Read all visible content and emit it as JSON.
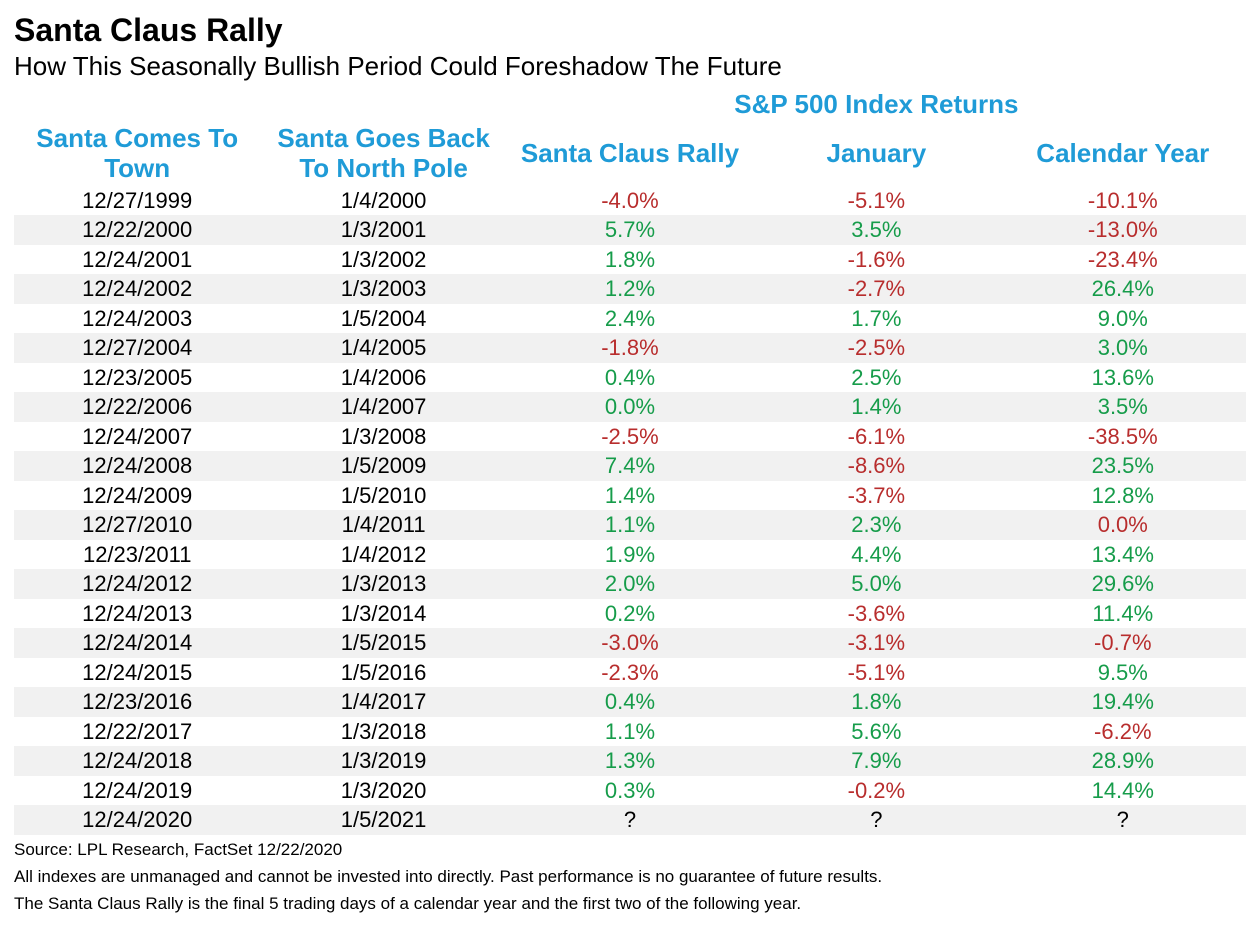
{
  "title": "Santa Claus Rally",
  "subtitle": "How This Seasonally Bullish Period Could Foreshadow The Future",
  "colors": {
    "header_blue": "#1f9bd7",
    "positive": "#169c4a",
    "negative": "#b82d2d",
    "neutral": "#000000",
    "row_alt_bg": "#f1f1f1",
    "text": "#000000",
    "background": "#ffffff"
  },
  "table": {
    "type": "table",
    "super_header": "S&P 500 Index Returns",
    "columns": [
      "Santa Comes To Town",
      "Santa Goes Back To North Pole",
      "Santa Claus Rally",
      "January",
      "Calendar Year"
    ],
    "column_align": [
      "center",
      "center",
      "center",
      "center",
      "center"
    ],
    "font_size_header": 26,
    "font_size_cell": 22,
    "rows": [
      {
        "start": "12/27/1999",
        "end": "1/4/2000",
        "rally": -4.0,
        "jan": -5.1,
        "year": -10.1
      },
      {
        "start": "12/22/2000",
        "end": "1/3/2001",
        "rally": 5.7,
        "jan": 3.5,
        "year": -13.0
      },
      {
        "start": "12/24/2001",
        "end": "1/3/2002",
        "rally": 1.8,
        "jan": -1.6,
        "year": -23.4
      },
      {
        "start": "12/24/2002",
        "end": "1/3/2003",
        "rally": 1.2,
        "jan": -2.7,
        "year": 26.4
      },
      {
        "start": "12/24/2003",
        "end": "1/5/2004",
        "rally": 2.4,
        "jan": 1.7,
        "year": 9.0
      },
      {
        "start": "12/27/2004",
        "end": "1/4/2005",
        "rally": -1.8,
        "jan": -2.5,
        "year": 3.0
      },
      {
        "start": "12/23/2005",
        "end": "1/4/2006",
        "rally": 0.4,
        "jan": 2.5,
        "year": 13.6
      },
      {
        "start": "12/22/2006",
        "end": "1/4/2007",
        "rally": 0.0,
        "jan": 1.4,
        "year": 3.5
      },
      {
        "start": "12/24/2007",
        "end": "1/3/2008",
        "rally": -2.5,
        "jan": -6.1,
        "year": -38.5
      },
      {
        "start": "12/24/2008",
        "end": "1/5/2009",
        "rally": 7.4,
        "jan": -8.6,
        "year": 23.5
      },
      {
        "start": "12/24/2009",
        "end": "1/5/2010",
        "rally": 1.4,
        "jan": -3.7,
        "year": 12.8
      },
      {
        "start": "12/27/2010",
        "end": "1/4/2011",
        "rally": 1.1,
        "jan": 2.3,
        "year": 0.0
      },
      {
        "start": "12/23/2011",
        "end": "1/4/2012",
        "rally": 1.9,
        "jan": 4.4,
        "year": 13.4
      },
      {
        "start": "12/24/2012",
        "end": "1/3/2013",
        "rally": 2.0,
        "jan": 5.0,
        "year": 29.6
      },
      {
        "start": "12/24/2013",
        "end": "1/3/2014",
        "rally": 0.2,
        "jan": -3.6,
        "year": 11.4
      },
      {
        "start": "12/24/2014",
        "end": "1/5/2015",
        "rally": -3.0,
        "jan": -3.1,
        "year": -0.7
      },
      {
        "start": "12/24/2015",
        "end": "1/5/2016",
        "rally": -2.3,
        "jan": -5.1,
        "year": 9.5
      },
      {
        "start": "12/23/2016",
        "end": "1/4/2017",
        "rally": 0.4,
        "jan": 1.8,
        "year": 19.4
      },
      {
        "start": "12/22/2017",
        "end": "1/3/2018",
        "rally": 1.1,
        "jan": 5.6,
        "year": -6.2
      },
      {
        "start": "12/24/2018",
        "end": "1/3/2019",
        "rally": 1.3,
        "jan": 7.9,
        "year": 28.9
      },
      {
        "start": "12/24/2019",
        "end": "1/3/2020",
        "rally": 0.3,
        "jan": -0.2,
        "year": 14.4
      },
      {
        "start": "12/24/2020",
        "end": "1/5/2021",
        "rally": null,
        "jan": null,
        "year": null
      }
    ],
    "null_placeholder": "?"
  },
  "footnotes": [
    "Source: LPL Research, FactSet 12/22/2020",
    "All indexes are unmanaged and cannot be invested into directly. Past performance is no guarantee of future results.",
    "The Santa Claus Rally is the final 5 trading days of a calendar year and the first two of the following year."
  ]
}
